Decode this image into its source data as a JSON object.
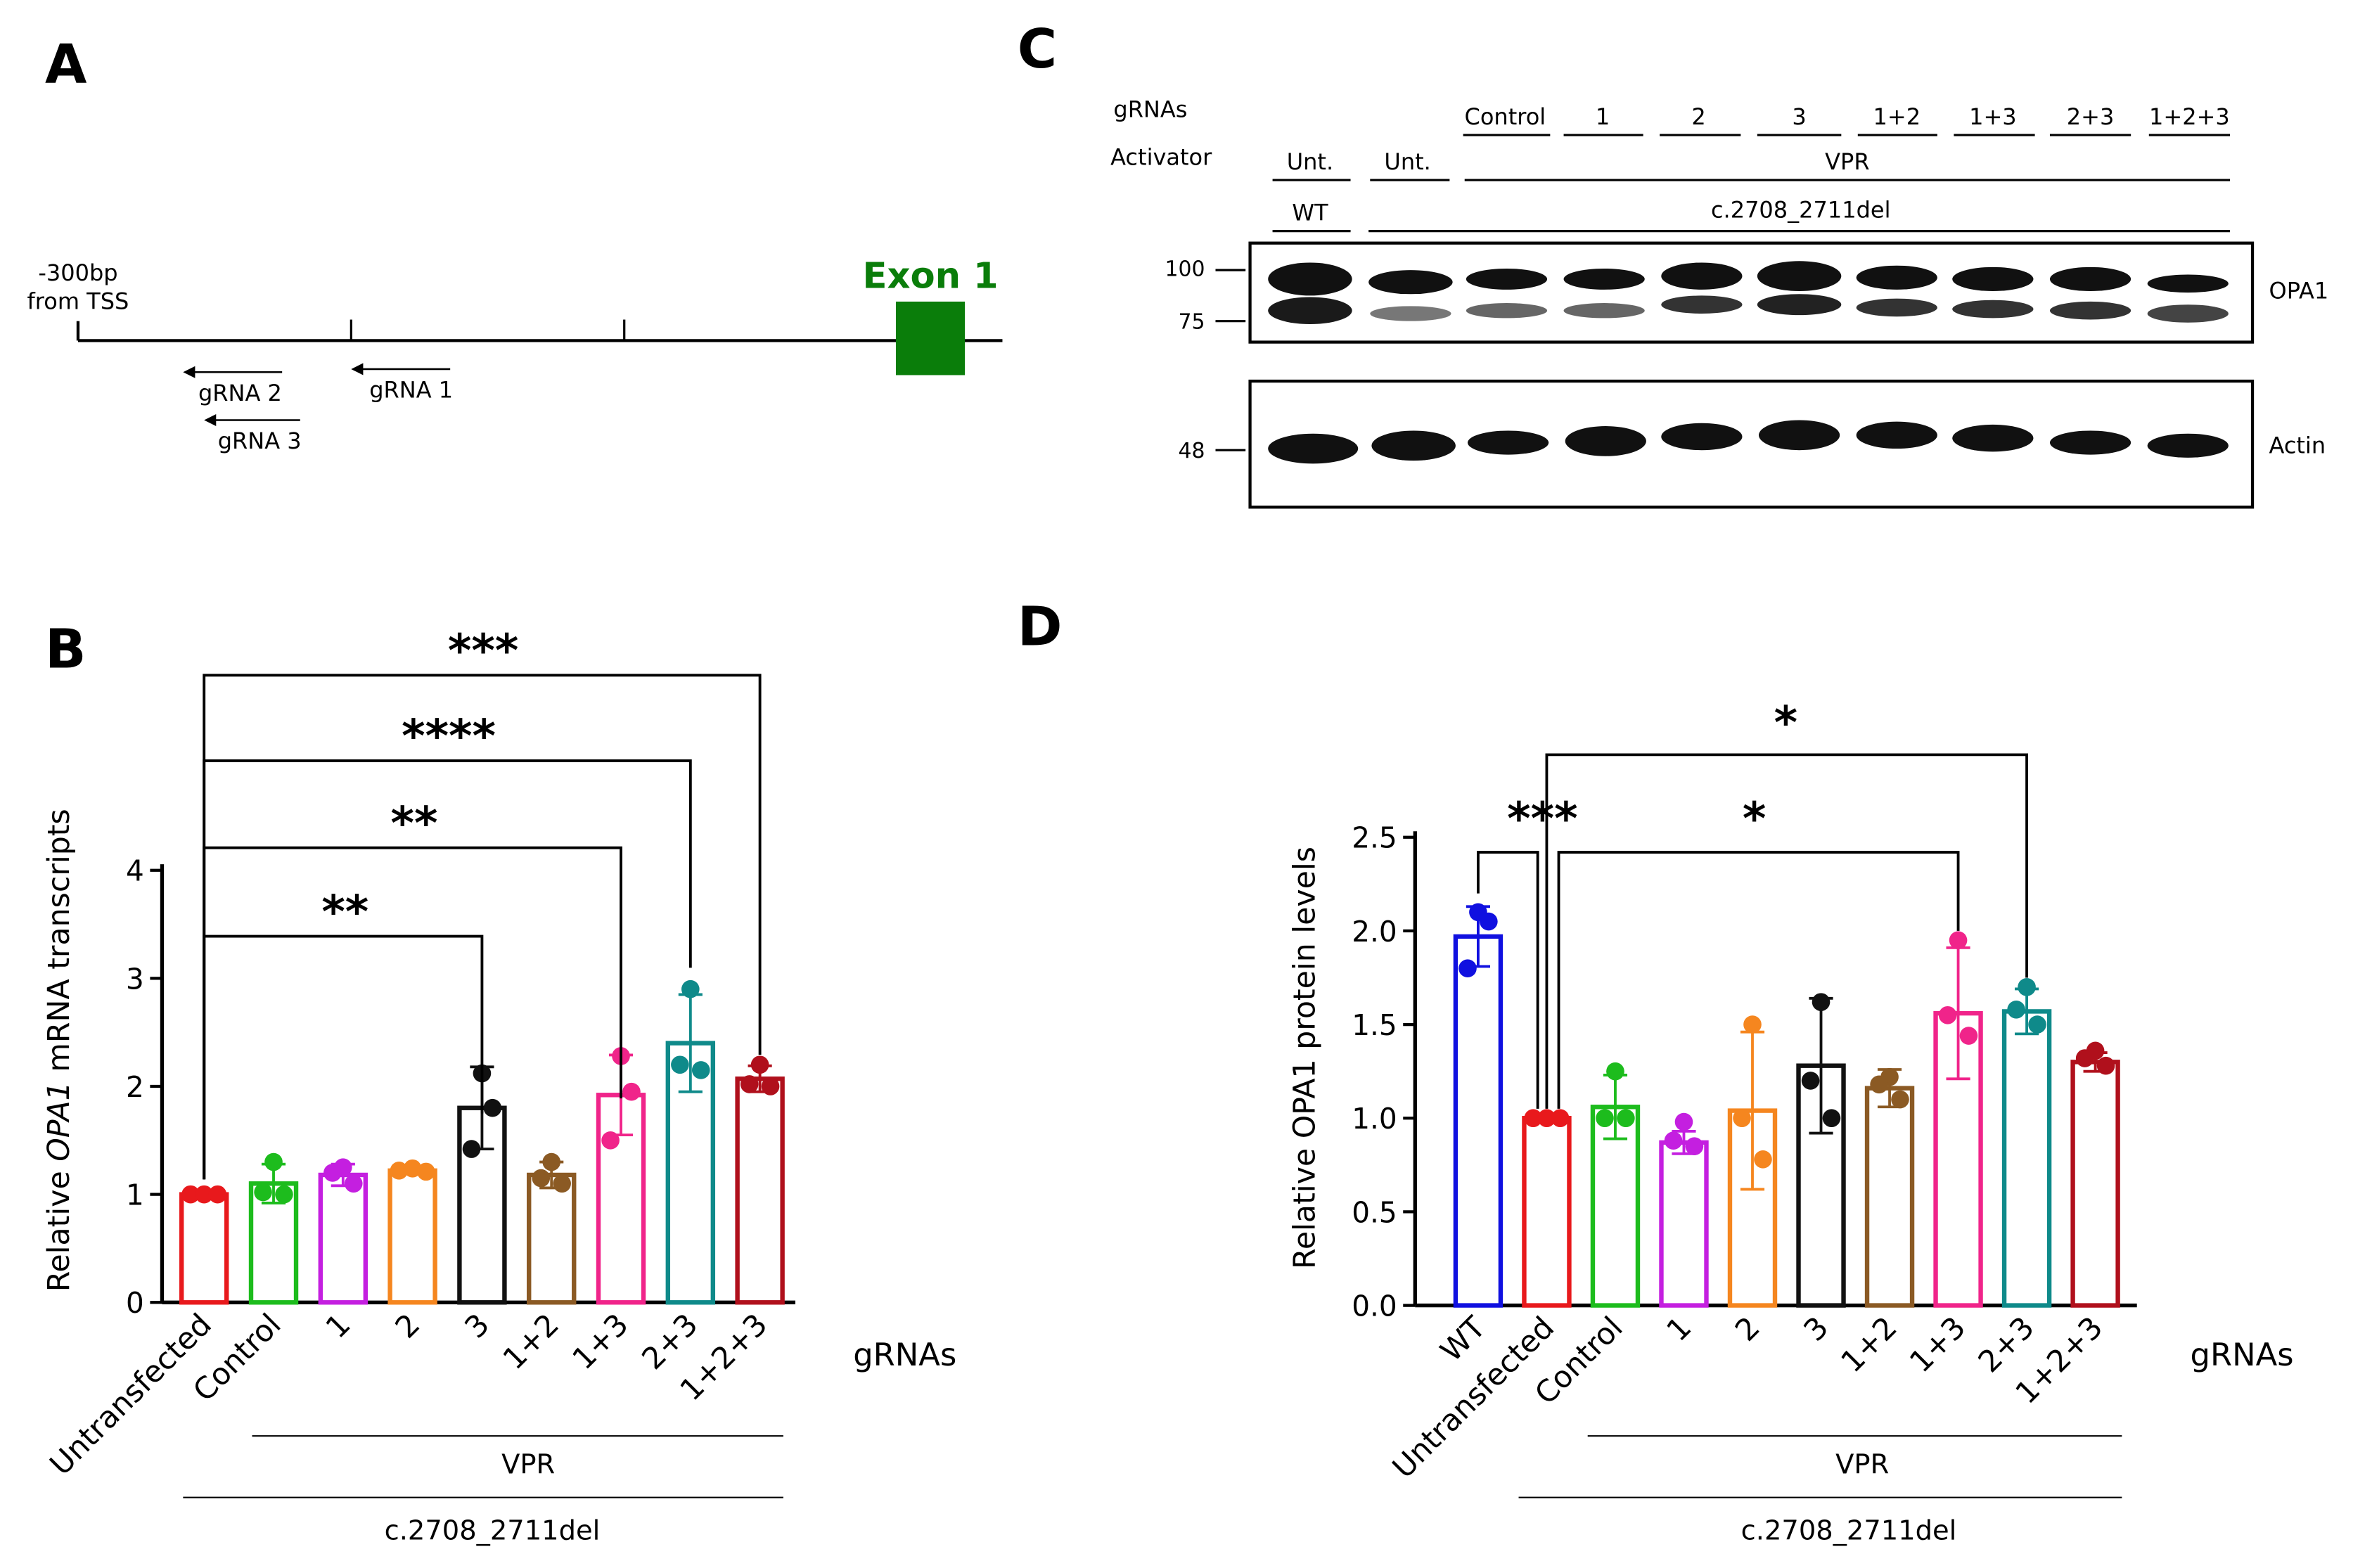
{
  "panel_letters": {
    "a": "A",
    "b": "B",
    "c": "C",
    "d": "D"
  },
  "panelA": {
    "tss_label_line1": "-300bp",
    "tss_label_line2": "from TSS",
    "exon_label": "Exon 1",
    "gRNA_labels": [
      "gRNA 2",
      "gRNA 3",
      "gRNA 1"
    ],
    "colors": {
      "exon": "#0a7d0a"
    }
  },
  "panelC": {
    "row_gRNAs_label": "gRNAs",
    "row_activator_label": "Activator",
    "gRNA_lanes": [
      "Control",
      "1",
      "2",
      "3",
      "1+2",
      "1+3",
      "2+3",
      "1+2+3"
    ],
    "activator_unt_1": "Unt.",
    "activator_unt_2": "Unt.",
    "activator_vpr": "VPR",
    "genotype_wt": "WT",
    "genotype_mut": "c.2708_2711del",
    "mw_markers": [
      "100",
      "75",
      "48"
    ],
    "blot_labels": [
      "OPA1",
      "Actin"
    ]
  },
  "chart_data": [
    {
      "panel": "B",
      "type": "bar",
      "categories": [
        "Untransfected",
        "Control",
        "1",
        "2",
        "3",
        "1+2",
        "1+3",
        "2+3",
        "1+2+3"
      ],
      "values": [
        1.0,
        1.1,
        1.18,
        1.22,
        1.8,
        1.18,
        1.92,
        2.4,
        2.07
      ],
      "error": [
        0.02,
        0.18,
        0.1,
        0.03,
        0.38,
        0.12,
        0.37,
        0.45,
        0.12
      ],
      "points": [
        [
          1.0,
          1.0,
          1.0
        ],
        [
          1.3,
          1.0,
          1.02
        ],
        [
          1.25,
          1.1,
          1.2
        ],
        [
          1.22,
          1.24,
          1.21
        ],
        [
          2.12,
          1.8,
          1.42
        ],
        [
          1.3,
          1.1,
          1.15
        ],
        [
          2.28,
          1.95,
          1.5
        ],
        [
          2.9,
          2.15,
          2.2
        ],
        [
          2.2,
          2.0,
          2.02
        ]
      ],
      "colors": [
        "#e8191c",
        "#1dbc1d",
        "#c41fe0",
        "#f5861f",
        "#111111",
        "#8b5a24",
        "#f0248a",
        "#0f8a8a",
        "#b0101c"
      ],
      "ylabel_prefix": "Relative ",
      "ylabel_italic": "OPA1",
      "ylabel_suffix": " mRNA transcripts",
      "ylim": [
        0,
        4
      ],
      "yticks": [
        "0",
        "1",
        "2",
        "3",
        "4"
      ],
      "xaxis_title": "gRNAs",
      "group_labels": [
        "VPR",
        "c.2708_2711del"
      ],
      "significance": [
        "**",
        "**",
        "****",
        "***"
      ]
    },
    {
      "panel": "D",
      "type": "bar",
      "categories": [
        "WT",
        "Untransfected",
        "Control",
        "1",
        "2",
        "3",
        "1+2",
        "1+3",
        "2+3",
        "1+2+3"
      ],
      "values": [
        1.97,
        1.0,
        1.06,
        0.87,
        1.04,
        1.28,
        1.16,
        1.56,
        1.57,
        1.3
      ],
      "error": [
        0.16,
        0.01,
        0.17,
        0.06,
        0.42,
        0.36,
        0.1,
        0.35,
        0.12,
        0.05
      ],
      "points": [
        [
          2.1,
          2.05,
          1.8
        ],
        [
          1.0,
          1.0,
          1.0
        ],
        [
          1.25,
          1.0,
          1.0
        ],
        [
          0.98,
          0.85,
          0.88
        ],
        [
          1.5,
          0.78,
          1.0
        ],
        [
          1.62,
          1.0,
          1.2
        ],
        [
          1.22,
          1.1,
          1.18
        ],
        [
          1.95,
          1.44,
          1.55
        ],
        [
          1.7,
          1.5,
          1.58
        ],
        [
          1.36,
          1.28,
          1.32
        ]
      ],
      "colors": [
        "#1010e0",
        "#e8191c",
        "#1dbc1d",
        "#c41fe0",
        "#f5861f",
        "#111111",
        "#8b5a24",
        "#f0248a",
        "#0f8a8a",
        "#b0101c"
      ],
      "ylabel": "Relative OPA1 protein levels",
      "ylim": [
        0,
        2.5
      ],
      "yticks": [
        "0.0",
        "0.5",
        "1.0",
        "1.5",
        "2.0",
        "2.5"
      ],
      "xaxis_title": "gRNAs",
      "group_labels": [
        "VPR",
        "c.2708_2711del"
      ],
      "significance": [
        "***",
        "*",
        "*"
      ]
    }
  ]
}
